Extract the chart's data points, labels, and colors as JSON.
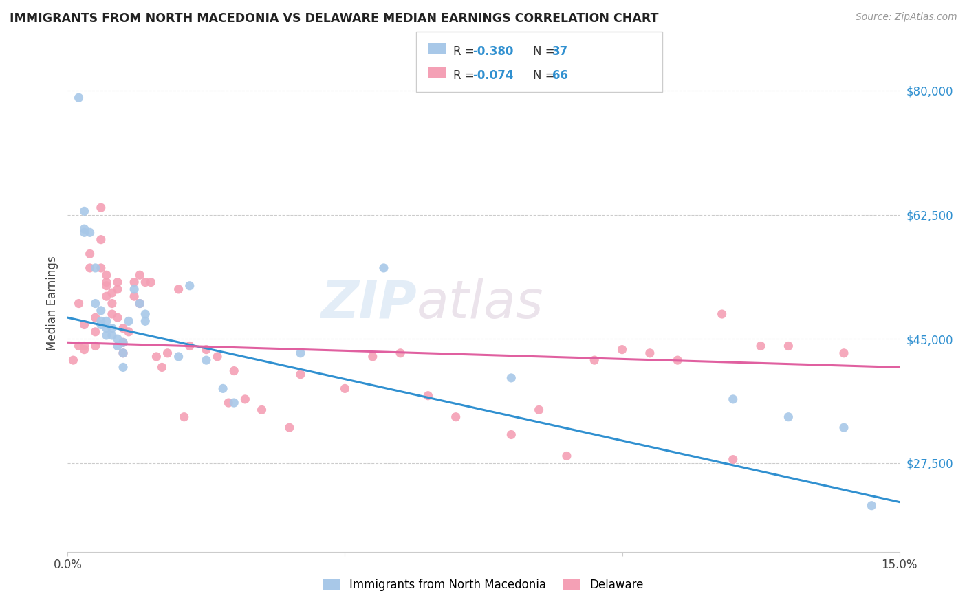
{
  "title": "IMMIGRANTS FROM NORTH MACEDONIA VS DELAWARE MEDIAN EARNINGS CORRELATION CHART",
  "source": "Source: ZipAtlas.com",
  "ylabel": "Median Earnings",
  "xlim": [
    0.0,
    0.15
  ],
  "ylim": [
    15000,
    85000
  ],
  "yticks": [
    27500,
    45000,
    62500,
    80000
  ],
  "ytick_labels": [
    "$27,500",
    "$45,000",
    "$62,500",
    "$80,000"
  ],
  "xticks": [
    0.0,
    0.05,
    0.1,
    0.15
  ],
  "xtick_labels": [
    "0.0%",
    "",
    "",
    "15.0%"
  ],
  "legend_label1": "Immigrants from North Macedonia",
  "legend_label2": "Delaware",
  "blue_color": "#a8c8e8",
  "pink_color": "#f4a0b5",
  "line_blue": "#3090d0",
  "line_pink": "#e060a0",
  "watermark_zip": "ZIP",
  "watermark_atlas": "atlas",
  "blue_scatter_x": [
    0.002,
    0.003,
    0.003,
    0.004,
    0.005,
    0.005,
    0.006,
    0.006,
    0.007,
    0.007,
    0.007,
    0.008,
    0.008,
    0.009,
    0.009,
    0.01,
    0.01,
    0.011,
    0.012,
    0.013,
    0.014,
    0.014,
    0.02,
    0.022,
    0.025,
    0.028,
    0.03,
    0.042,
    0.057,
    0.08,
    0.12,
    0.13,
    0.14,
    0.145,
    0.003,
    0.006,
    0.01
  ],
  "blue_scatter_y": [
    79000,
    63000,
    60500,
    60000,
    55000,
    50000,
    49000,
    47500,
    47500,
    46500,
    45500,
    46500,
    45500,
    45000,
    44000,
    44500,
    43000,
    47500,
    52000,
    50000,
    48500,
    47500,
    42500,
    52500,
    42000,
    38000,
    36000,
    43000,
    55000,
    39500,
    36500,
    34000,
    32500,
    21500,
    60000,
    47000,
    41000
  ],
  "pink_scatter_x": [
    0.001,
    0.002,
    0.002,
    0.003,
    0.003,
    0.003,
    0.004,
    0.004,
    0.005,
    0.005,
    0.005,
    0.006,
    0.006,
    0.006,
    0.007,
    0.007,
    0.007,
    0.007,
    0.008,
    0.008,
    0.008,
    0.009,
    0.009,
    0.009,
    0.01,
    0.01,
    0.01,
    0.011,
    0.012,
    0.012,
    0.013,
    0.013,
    0.014,
    0.015,
    0.016,
    0.017,
    0.018,
    0.02,
    0.021,
    0.022,
    0.025,
    0.027,
    0.029,
    0.03,
    0.032,
    0.035,
    0.04,
    0.042,
    0.05,
    0.055,
    0.06,
    0.065,
    0.07,
    0.08,
    0.085,
    0.09,
    0.095,
    0.1,
    0.105,
    0.11,
    0.118,
    0.12,
    0.125,
    0.13,
    0.14
  ],
  "pink_scatter_y": [
    42000,
    44000,
    50000,
    44000,
    47000,
    43500,
    57000,
    55000,
    48000,
    46000,
    44000,
    63500,
    59000,
    55000,
    54000,
    53000,
    52500,
    51000,
    51500,
    50000,
    48500,
    53000,
    52000,
    48000,
    46500,
    44500,
    43000,
    46000,
    53000,
    51000,
    54000,
    50000,
    53000,
    53000,
    42500,
    41000,
    43000,
    52000,
    34000,
    44000,
    43500,
    42500,
    36000,
    40500,
    36500,
    35000,
    32500,
    40000,
    38000,
    42500,
    43000,
    37000,
    34000,
    31500,
    35000,
    28500,
    42000,
    43500,
    43000,
    42000,
    48500,
    28000,
    44000,
    44000,
    43000
  ]
}
